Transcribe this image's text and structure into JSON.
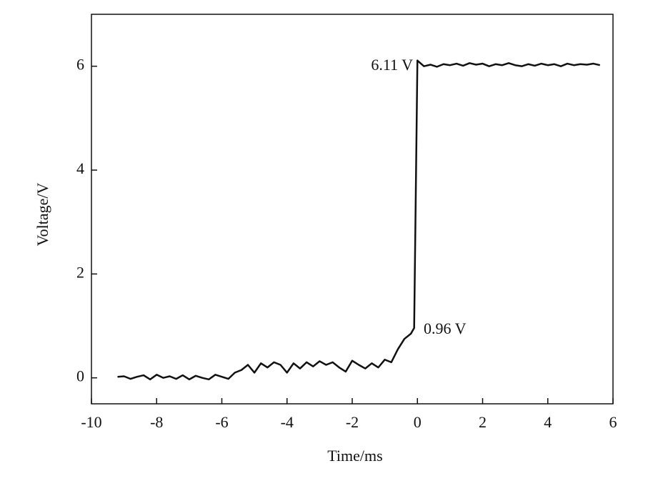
{
  "chart_data": {
    "type": "line",
    "x_label": "Time/ms",
    "y_label": "Voltage/V",
    "x": [
      -9.2,
      -9.0,
      -8.8,
      -8.6,
      -8.4,
      -8.2,
      -8.0,
      -7.8,
      -7.6,
      -7.4,
      -7.2,
      -7.0,
      -6.8,
      -6.6,
      -6.4,
      -6.2,
      -6.0,
      -5.8,
      -5.6,
      -5.4,
      -5.2,
      -5.0,
      -4.8,
      -4.6,
      -4.4,
      -4.2,
      -4.0,
      -3.8,
      -3.6,
      -3.4,
      -3.2,
      -3.0,
      -2.8,
      -2.6,
      -2.4,
      -2.2,
      -2.0,
      -1.8,
      -1.6,
      -1.4,
      -1.2,
      -1.0,
      -0.8,
      -0.6,
      -0.4,
      -0.2,
      -0.1,
      0.0,
      0.2,
      0.4,
      0.6,
      0.8,
      1.0,
      1.2,
      1.4,
      1.6,
      1.8,
      2.0,
      2.2,
      2.4,
      2.6,
      2.8,
      3.0,
      3.2,
      3.4,
      3.6,
      3.8,
      4.0,
      4.2,
      4.4,
      4.6,
      4.8,
      5.0,
      5.2,
      5.4,
      5.6
    ],
    "series": [
      {
        "color": "#111111",
        "values": [
          0.02,
          0.03,
          -0.02,
          0.02,
          0.05,
          -0.03,
          0.06,
          0.0,
          0.03,
          -0.02,
          0.05,
          -0.03,
          0.04,
          0.0,
          -0.03,
          0.06,
          0.02,
          -0.02,
          0.1,
          0.15,
          0.25,
          0.1,
          0.28,
          0.2,
          0.3,
          0.25,
          0.1,
          0.28,
          0.18,
          0.3,
          0.22,
          0.32,
          0.25,
          0.3,
          0.2,
          0.12,
          0.33,
          0.25,
          0.18,
          0.28,
          0.2,
          0.35,
          0.3,
          0.55,
          0.75,
          0.85,
          0.96,
          6.11,
          6.0,
          6.03,
          5.99,
          6.04,
          6.02,
          6.05,
          6.01,
          6.06,
          6.03,
          6.05,
          6.0,
          6.04,
          6.02,
          6.06,
          6.02,
          6.0,
          6.04,
          6.01,
          6.05,
          6.02,
          6.04,
          6.0,
          6.05,
          6.02,
          6.04,
          6.03,
          6.05,
          6.02
        ]
      }
    ],
    "annotations": [
      "6.11 V",
      "0.96 V"
    ],
    "xlim": [
      -10,
      6
    ],
    "xticks": [
      -10,
      -8,
      -6,
      -4,
      -2,
      0,
      2,
      4,
      6
    ],
    "ylim": [
      -0.5,
      7
    ],
    "yticks": [
      0,
      2,
      4,
      6
    ],
    "grid": false
  }
}
